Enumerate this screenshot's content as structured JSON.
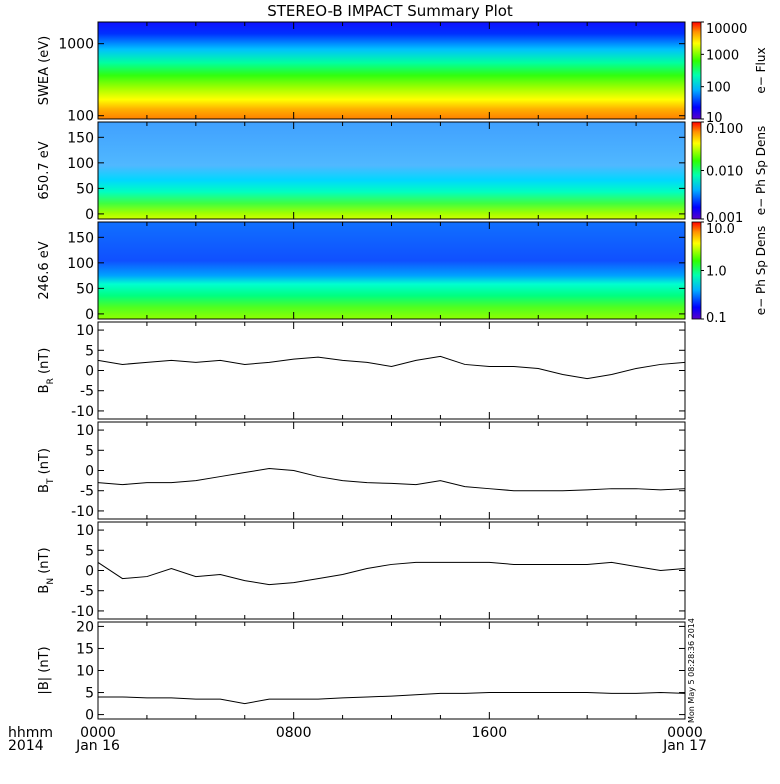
{
  "title": "STEREO-B IMPACT Summary Plot",
  "stamp": "Mon May  5 08:28:36 2014",
  "time_axis": {
    "label_row1": "hhmm",
    "label_row2": "2014",
    "ticks": [
      {
        "hour": 0,
        "top": "0000",
        "bottom": "Jan 16"
      },
      {
        "hour": 8,
        "top": "0800",
        "bottom": ""
      },
      {
        "hour": 16,
        "top": "1600",
        "bottom": ""
      },
      {
        "hour": 24,
        "top": "0000",
        "bottom": "Jan 17"
      }
    ]
  },
  "chart_data": [
    {
      "type": "heatmap",
      "ylabel": "SWEA (eV)",
      "yscale": "log",
      "ylim": [
        90,
        2000
      ],
      "yticks": [
        "100",
        "1000"
      ],
      "colorbar": {
        "label": "e− Flux",
        "scale": "log",
        "ticks": [
          "10",
          "100",
          "1000",
          "10000"
        ]
      }
    },
    {
      "type": "heatmap",
      "ylabel": "650.7 eV",
      "ylim": [
        -10,
        180
      ],
      "yticks": [
        "0",
        "50",
        "100",
        "150"
      ],
      "colorbar": {
        "label": "e− Ph Sp Dens",
        "scale": "log",
        "ticks": [
          "0.001",
          "0.010",
          "0.100"
        ]
      }
    },
    {
      "type": "heatmap",
      "ylabel": "246.6 eV",
      "ylim": [
        -10,
        180
      ],
      "yticks": [
        "0",
        "50",
        "100",
        "150"
      ],
      "colorbar": {
        "label": "e− Ph Sp Dens",
        "scale": "log",
        "ticks": [
          "0.1",
          "1.0",
          "10.0"
        ]
      }
    },
    {
      "type": "line",
      "ylabel": "B",
      "ysub": "R",
      "yunit": " (nT)",
      "ylim": [
        -12,
        12
      ],
      "yticks": [
        "-10",
        "-5",
        "0",
        "5",
        "10"
      ],
      "x": [
        0,
        1,
        2,
        3,
        4,
        5,
        6,
        7,
        8,
        9,
        10,
        11,
        12,
        13,
        14,
        15,
        16,
        17,
        18,
        19,
        20,
        21,
        22,
        23,
        24
      ],
      "values": [
        2.5,
        1.5,
        2,
        2.5,
        2,
        2.5,
        1.5,
        2,
        2.8,
        3.3,
        2.5,
        2,
        1,
        2.5,
        3.5,
        1.5,
        1,
        1,
        0.5,
        -1,
        -2,
        -1,
        0.5,
        1.5,
        2
      ]
    },
    {
      "type": "line",
      "ylabel": "B",
      "ysub": "T",
      "yunit": " (nT)",
      "ylim": [
        -12,
        12
      ],
      "yticks": [
        "-10",
        "-5",
        "0",
        "5",
        "10"
      ],
      "x": [
        0,
        1,
        2,
        3,
        4,
        5,
        6,
        7,
        8,
        9,
        10,
        11,
        12,
        13,
        14,
        15,
        16,
        17,
        18,
        19,
        20,
        21,
        22,
        23,
        24
      ],
      "values": [
        -3,
        -3.5,
        -3,
        -3,
        -2.5,
        -1.5,
        -0.5,
        0.5,
        0,
        -1.5,
        -2.5,
        -3,
        -3.2,
        -3.5,
        -2.5,
        -4,
        -4.5,
        -5,
        -5,
        -5,
        -4.8,
        -4.5,
        -4.5,
        -4.8,
        -4.5
      ]
    },
    {
      "type": "line",
      "ylabel": "B",
      "ysub": "N",
      "yunit": " (nT)",
      "ylim": [
        -12,
        12
      ],
      "yticks": [
        "-10",
        "-5",
        "0",
        "5",
        "10"
      ],
      "x": [
        0,
        1,
        2,
        3,
        4,
        5,
        6,
        7,
        8,
        9,
        10,
        11,
        12,
        13,
        14,
        15,
        16,
        17,
        18,
        19,
        20,
        21,
        22,
        23,
        24
      ],
      "values": [
        2,
        -2,
        -1.5,
        0.5,
        -1.5,
        -1,
        -2.5,
        -3.5,
        -3,
        -2,
        -1,
        0.5,
        1.5,
        2,
        2,
        2,
        2,
        1.5,
        1.5,
        1.5,
        1.5,
        2,
        1,
        0,
        0.5
      ]
    },
    {
      "type": "line",
      "ylabel": "|B| (nT)",
      "ylim": [
        -1,
        21
      ],
      "yticks": [
        "0",
        "5",
        "10",
        "15",
        "20"
      ],
      "x": [
        0,
        1,
        2,
        3,
        4,
        5,
        6,
        7,
        8,
        9,
        10,
        11,
        12,
        13,
        14,
        15,
        16,
        17,
        18,
        19,
        20,
        21,
        22,
        23,
        24
      ],
      "values": [
        4,
        4,
        3.8,
        3.8,
        3.5,
        3.5,
        2.5,
        3.5,
        3.5,
        3.5,
        3.8,
        4,
        4.2,
        4.5,
        4.8,
        4.8,
        5,
        5,
        5,
        5,
        5,
        4.8,
        4.8,
        5,
        4.8
      ]
    }
  ]
}
